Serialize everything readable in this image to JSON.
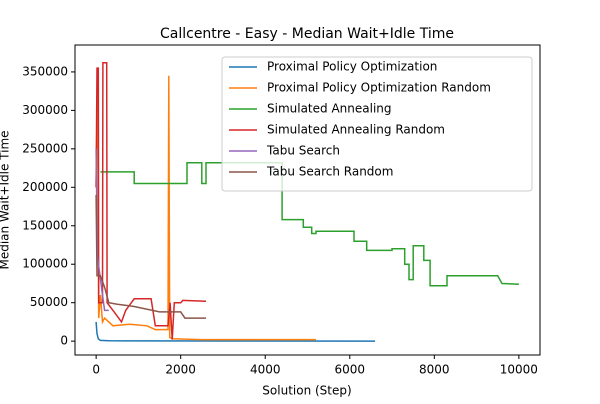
{
  "chart_data": {
    "type": "line",
    "title": "Callcentre - Easy - Median Wait+Idle Time",
    "x_label": "Solution (Step)",
    "y_label": "Median Wait+Idle Time",
    "xlim": [
      -500,
      10500
    ],
    "ylim": [
      -18000,
      385000
    ],
    "xticks": [
      0,
      2000,
      4000,
      6000,
      8000,
      10000
    ],
    "yticks": [
      0,
      50000,
      100000,
      150000,
      200000,
      250000,
      300000,
      350000
    ],
    "legend": "upper right",
    "series": [
      {
        "name": "Proximal Policy Optimization",
        "color": "#1f77b4",
        "x": [
          0,
          20,
          50,
          100,
          300,
          1000,
          3000,
          6600
        ],
        "values": [
          25000,
          10000,
          3000,
          1000,
          500,
          300,
          200,
          100
        ]
      },
      {
        "name": "Proximal Policy Optimization Random",
        "color": "#ff7f0e",
        "x": [
          0,
          30,
          60,
          100,
          150,
          200,
          400,
          800,
          1200,
          1400,
          1700,
          1720,
          1740,
          1800,
          2500,
          3100,
          5200
        ],
        "values": [
          200000,
          340000,
          30000,
          60000,
          25000,
          30000,
          20000,
          22000,
          20000,
          15000,
          15000,
          345000,
          5000,
          3000,
          2000,
          2000,
          2000
        ]
      },
      {
        "name": "Simulated Annealing",
        "color": "#2ca02c",
        "x": [
          100,
          900,
          900,
          2150,
          2150,
          2500,
          2500,
          2600,
          2600,
          4400,
          4400,
          4900,
          4900,
          5100,
          5100,
          5200,
          5200,
          6100,
          6100,
          6400,
          6400,
          7000,
          7000,
          7300,
          7300,
          7400,
          7400,
          7500,
          7500,
          7750,
          7750,
          7900,
          7900,
          8300,
          8300,
          9500,
          9600,
          10000
        ],
        "values": [
          220000,
          220000,
          205000,
          205000,
          232000,
          232000,
          205000,
          205000,
          232000,
          232000,
          158000,
          158000,
          148000,
          148000,
          140000,
          140000,
          143000,
          143000,
          130000,
          130000,
          118000,
          118000,
          120000,
          120000,
          100000,
          100000,
          80000,
          80000,
          124000,
          124000,
          105000,
          105000,
          72000,
          72000,
          85000,
          85000,
          75000,
          74000
        ]
      },
      {
        "name": "Simulated Annealing Random",
        "color": "#d62728",
        "x": [
          0,
          20,
          50,
          60,
          150,
          160,
          250,
          260,
          400,
          600,
          700,
          900,
          1300,
          1400,
          1700,
          1750,
          1800,
          1850,
          2000,
          2050,
          2600
        ],
        "values": [
          200000,
          355000,
          355000,
          50000,
          50000,
          362000,
          362000,
          50000,
          40000,
          25000,
          40000,
          55000,
          55000,
          20000,
          20000,
          50000,
          2000,
          50000,
          50000,
          53000,
          52000
        ]
      },
      {
        "name": "Tabu Search",
        "color": "#9467bd",
        "x": [
          0,
          30,
          80,
          150,
          200,
          300
        ],
        "values": [
          250000,
          110000,
          90000,
          60000,
          40000,
          40000
        ]
      },
      {
        "name": "Tabu Search Random",
        "color": "#8c564b",
        "x": [
          0,
          20,
          100,
          200,
          300,
          500,
          900,
          1500,
          2000,
          2100,
          2600
        ],
        "values": [
          190000,
          85000,
          85000,
          70000,
          50000,
          48000,
          45000,
          38000,
          38000,
          30000,
          30000
        ]
      }
    ]
  }
}
